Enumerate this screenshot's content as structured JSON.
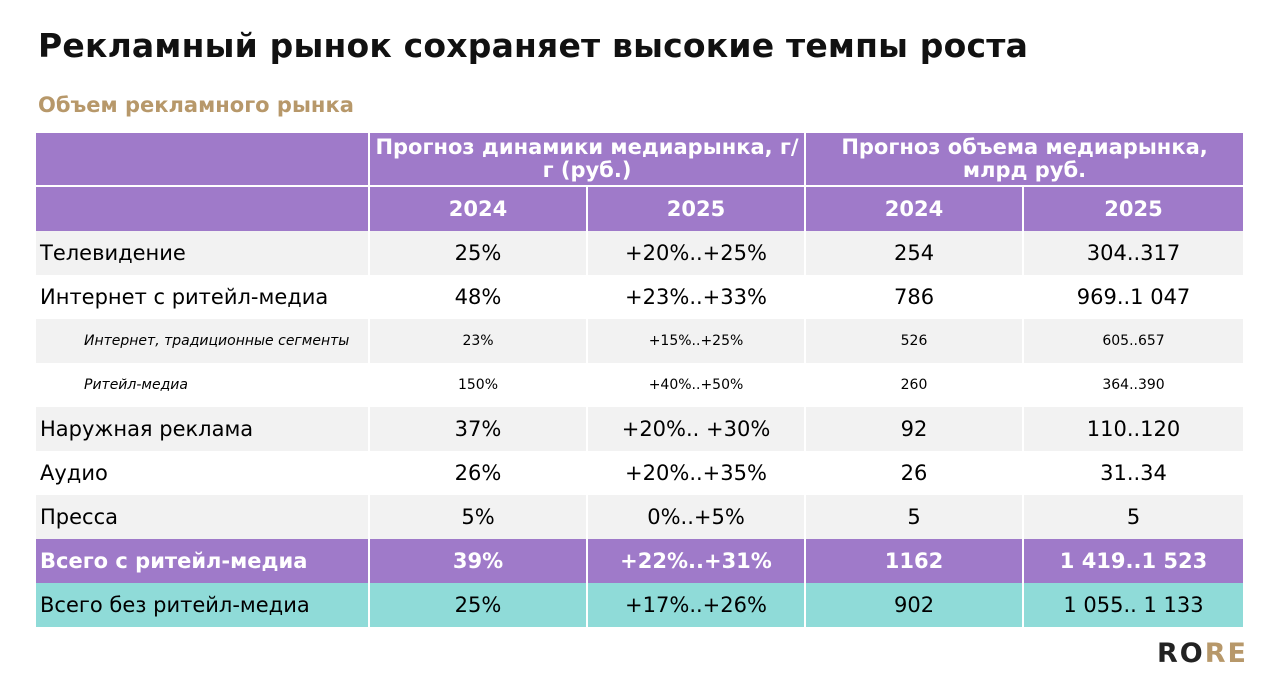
{
  "title": "Рекламный рынок сохраняет высокие темпы роста",
  "subtitle": "Объем рекламного рынка",
  "table": {
    "group_headers": [
      "Прогноз динамики медиарынка, г/г (руб.)",
      "Прогноз объема медиарынка, млрд руб."
    ],
    "year_headers": [
      "2024",
      "2025",
      "2024",
      "2025"
    ],
    "rows": [
      {
        "label": "Телевидение",
        "g2024": "25%",
        "g2025": "+20%..+25%",
        "v2024": "254",
        "v2025": "304..317"
      },
      {
        "label": "Интернет с ритейл-медиа",
        "g2024": "48%",
        "g2025": "+23%..+33%",
        "v2024": "786",
        "v2025": "969..1 047"
      },
      {
        "label": "Интернет, традиционные сегменты",
        "g2024": "23%",
        "g2025": "+15%..+25%",
        "v2024": "526",
        "v2025": "605..657"
      },
      {
        "label": "Ритейл-медиа",
        "g2024": "150%",
        "g2025": "+40%..+50%",
        "v2024": "260",
        "v2025": "364..390"
      },
      {
        "label": "Наружная реклама",
        "g2024": "37%",
        "g2025": "+20%.. +30%",
        "v2024": "92",
        "v2025": "110..120"
      },
      {
        "label": "Аудио",
        "g2024": "26%",
        "g2025": "+20%..+35%",
        "v2024": "26",
        "v2025": "31..34"
      },
      {
        "label": "Пресса",
        "g2024": "5%",
        "g2025": "0%..+5%",
        "v2024": "5",
        "v2025": "5"
      },
      {
        "label": "Всего с ритейл-медиа",
        "g2024": "39%",
        "g2025": "+22%..+31%",
        "v2024": "1162",
        "v2025": "1 419..1 523"
      },
      {
        "label": "Всего без ритейл-медиа",
        "g2024": "25%",
        "g2025": "+17%..+26%",
        "v2024": "902",
        "v2025": "1 055.. 1 133"
      }
    ]
  },
  "logo": {
    "part1": "RO",
    "part2": "RE"
  },
  "colors": {
    "header": "#9f7ac9",
    "accent": "#b7986a",
    "teal": "#8fdbd8",
    "alt_row": "#f2f2f2"
  }
}
